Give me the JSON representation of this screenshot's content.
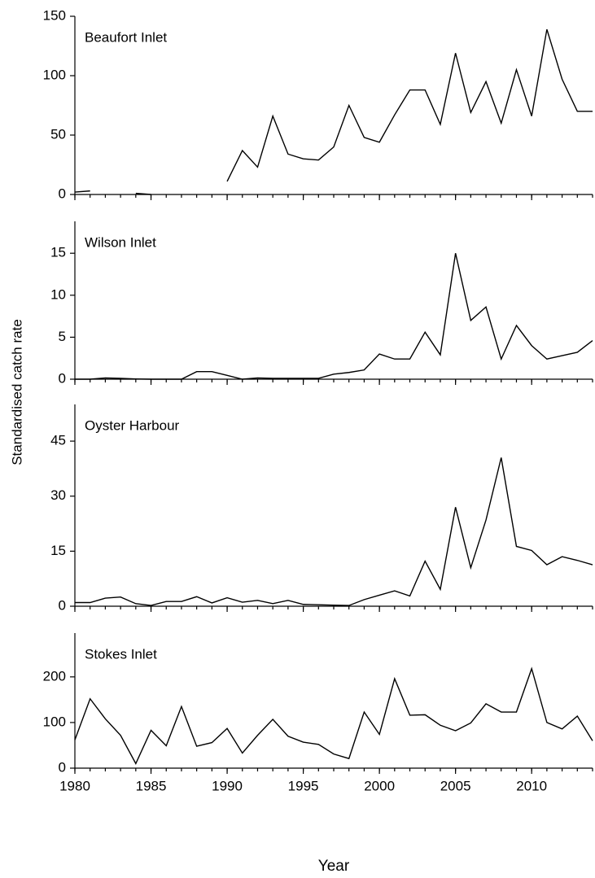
{
  "xlabel": "Year",
  "ylabel": "Standardised catch rate",
  "chart_data": [
    {
      "type": "line",
      "title": "Beaufort Inlet",
      "color": "#000000",
      "x": [
        1980,
        1981,
        1982,
        1983,
        1984,
        1985,
        1986,
        1987,
        1988,
        1989,
        1990,
        1991,
        1992,
        1993,
        1994,
        1995,
        1996,
        1997,
        1998,
        1999,
        2000,
        2001,
        2002,
        2003,
        2004,
        2005,
        2006,
        2007,
        2008,
        2009,
        2010,
        2011,
        2012,
        2013,
        2014
      ],
      "values": [
        2,
        3,
        null,
        null,
        1,
        0,
        null,
        null,
        null,
        null,
        11,
        37,
        23,
        66,
        34,
        30,
        29,
        40,
        75,
        48,
        44,
        67,
        88,
        88,
        59,
        119,
        69,
        95,
        60,
        105,
        66,
        139,
        97,
        70,
        70
      ],
      "xlim": [
        1980,
        2014
      ],
      "xticks": [
        1980,
        1985,
        1990,
        1995,
        2000,
        2005,
        2010
      ],
      "ylim": [
        0,
        150
      ],
      "yticks": [
        0,
        50,
        100,
        150
      ]
    },
    {
      "type": "line",
      "title": "Wilson Inlet",
      "color": "#000000",
      "x": [
        1980,
        1981,
        1982,
        1983,
        1984,
        1985,
        1986,
        1987,
        1988,
        1989,
        1990,
        1991,
        1992,
        1993,
        1994,
        1995,
        1996,
        1997,
        1998,
        1999,
        2000,
        2001,
        2002,
        2003,
        2004,
        2005,
        2006,
        2007,
        2008,
        2009,
        2010,
        2011,
        2012,
        2013,
        2014
      ],
      "values": [
        0,
        0,
        0.15,
        0.1,
        0.03,
        0,
        0,
        0,
        0.9,
        0.9,
        0.45,
        0,
        0.15,
        0.1,
        0.1,
        0.1,
        0.1,
        0.6,
        0.8,
        1.1,
        3.0,
        2.4,
        2.4,
        5.6,
        2.9,
        15,
        7,
        8.6,
        2.4,
        6.4,
        4,
        2.4,
        2.8,
        3.2,
        4.6
      ],
      "xlim": [
        1980,
        2014
      ],
      "xticks": [
        1980,
        1985,
        1990,
        1995,
        2000,
        2005,
        2010
      ],
      "ylim": [
        0,
        18.8
      ],
      "yticks": [
        0,
        5,
        10,
        15
      ]
    },
    {
      "type": "line",
      "title": "Oyster Harbour",
      "color": "#000000",
      "x": [
        1980,
        1981,
        1982,
        1983,
        1984,
        1985,
        1986,
        1987,
        1988,
        1989,
        1990,
        1991,
        1992,
        1993,
        1994,
        1995,
        1996,
        1997,
        1998,
        1999,
        2000,
        2001,
        2002,
        2003,
        2004,
        2005,
        2006,
        2007,
        2008,
        2009,
        2010,
        2011,
        2012,
        2013,
        2014
      ],
      "values": [
        1,
        1,
        2.2,
        2.5,
        0.7,
        0.2,
        1.3,
        1.3,
        2.6,
        0.9,
        2.3,
        1.1,
        1.6,
        0.7,
        1.6,
        0.5,
        0.4,
        0.3,
        0.2,
        1.8,
        3,
        4.2,
        2.8,
        12.3,
        4.6,
        27,
        10.5,
        23.5,
        40.5,
        16.3,
        15.2,
        11.3,
        13.5,
        12.5,
        11.3
      ],
      "xlim": [
        1980,
        2014
      ],
      "xticks": [
        1980,
        1985,
        1990,
        1995,
        2000,
        2005,
        2010
      ],
      "ylim": [
        0,
        55
      ],
      "yticks": [
        0,
        15,
        30,
        45
      ]
    },
    {
      "type": "line",
      "title": "Stokes Inlet",
      "color": "#000000",
      "x": [
        1980,
        1981,
        1982,
        1983,
        1984,
        1985,
        1986,
        1987,
        1988,
        1989,
        1990,
        1991,
        1992,
        1993,
        1994,
        1995,
        1996,
        1997,
        1998,
        1999,
        2000,
        2001,
        2002,
        2003,
        2004,
        2005,
        2006,
        2007,
        2008,
        2009,
        2010,
        2011,
        2012,
        2013,
        2014
      ],
      "values": [
        62,
        152,
        108,
        72,
        10,
        83,
        49,
        135,
        48,
        56,
        87,
        33,
        72,
        107,
        70,
        57,
        52,
        31,
        21,
        123,
        74,
        196,
        116,
        117,
        94,
        82,
        99,
        141,
        123,
        123,
        218,
        100,
        86,
        114,
        60
      ],
      "xlim": [
        1980,
        2014
      ],
      "xticks": [
        1980,
        1985,
        1990,
        1995,
        2000,
        2005,
        2010
      ],
      "ylim": [
        0,
        296
      ],
      "yticks": [
        0,
        100,
        200
      ]
    }
  ]
}
